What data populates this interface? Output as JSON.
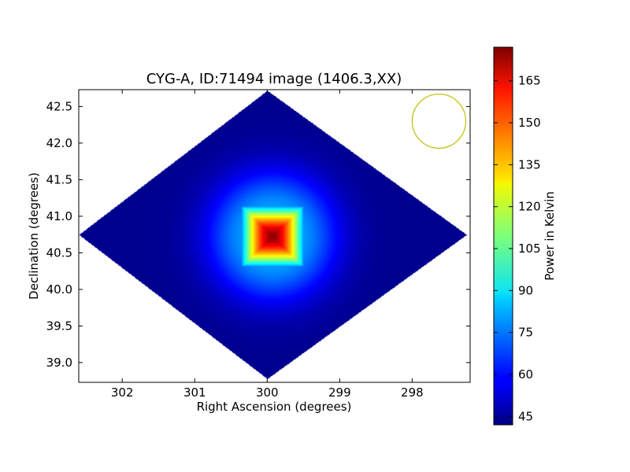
{
  "chart_data": {
    "type": "heatmap",
    "title": "CYG-A, ID:71494 image (1406.3,XX)",
    "xlabel": "Right Ascension (degrees)",
    "ylabel": "Declination (degrees)",
    "colorbar_label": "Power in Kelvin",
    "colormap": "jet",
    "xlim": [
      302.6,
      297.2
    ],
    "ylim": [
      38.73,
      42.73
    ],
    "x_inverted": true,
    "x_ticks": [
      302,
      301,
      300,
      299,
      298
    ],
    "x_tick_labels": [
      "302",
      "301",
      "300",
      "299",
      "298"
    ],
    "y_ticks": [
      39.0,
      39.5,
      40.0,
      40.5,
      41.0,
      41.5,
      42.0,
      42.5
    ],
    "y_tick_labels": [
      "39.0",
      "39.5",
      "40.0",
      "40.5",
      "41.0",
      "41.5",
      "42.0",
      "42.5"
    ],
    "color_range": [
      42,
      177
    ],
    "colorbar_ticks": [
      45,
      60,
      75,
      90,
      105,
      120,
      135,
      150,
      165
    ],
    "colorbar_tick_labels": [
      "45",
      "60",
      "75",
      "90",
      "105",
      "120",
      "135",
      "150",
      "165"
    ],
    "map_footprint_vertices": [
      [
        300.0,
        42.72
      ],
      [
        297.25,
        40.75
      ],
      [
        300.0,
        38.78
      ],
      [
        302.6,
        40.75
      ]
    ],
    "background_level": 44,
    "peak": {
      "ra": 299.93,
      "dec": 40.73,
      "value": 177
    },
    "beam": {
      "ra_center": 297.63,
      "dec_center": 42.3,
      "ra_radius": 0.37,
      "dec_radius": 0.37,
      "color": "#bfbf00"
    },
    "grid": false
  }
}
